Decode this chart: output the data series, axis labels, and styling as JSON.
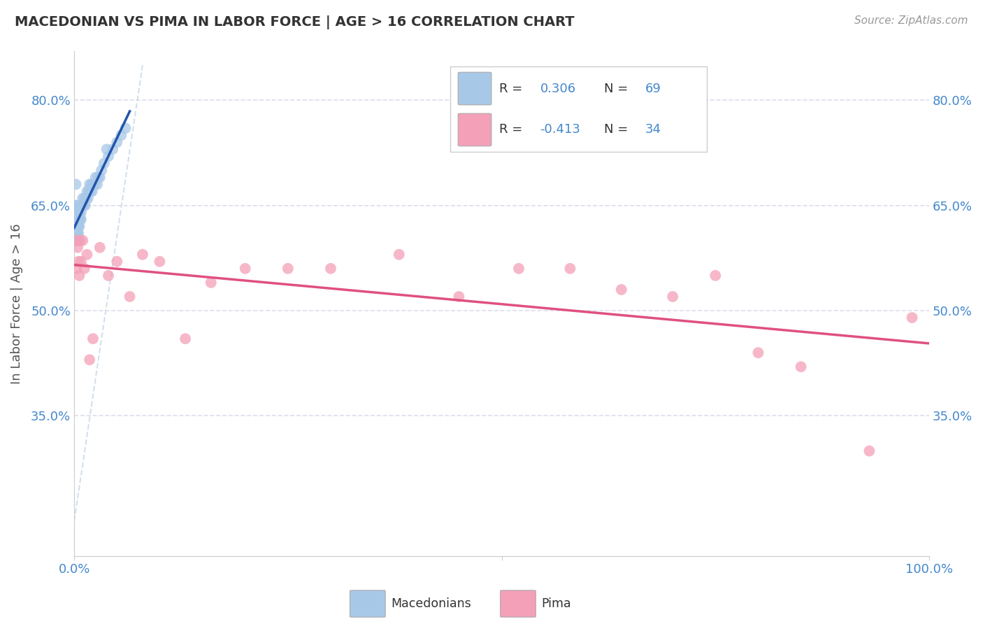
{
  "title": "MACEDONIAN VS PIMA IN LABOR FORCE | AGE > 16 CORRELATION CHART",
  "source": "Source: ZipAtlas.com",
  "ylabel": "In Labor Force | Age > 16",
  "xlim": [
    0.0,
    1.0
  ],
  "ylim": [
    0.15,
    0.87
  ],
  "yticks": [
    0.35,
    0.5,
    0.65,
    0.8
  ],
  "ytick_labels": [
    "35.0%",
    "50.0%",
    "65.0%",
    "80.0%"
  ],
  "xtick_left": "0.0%",
  "xtick_right": "100.0%",
  "macedonian_R": 0.306,
  "macedonian_N": 69,
  "pima_R": -0.413,
  "pima_N": 34,
  "blue_dot_color": "#a8c8e8",
  "pink_dot_color": "#f4a0b8",
  "trend_blue": "#2255aa",
  "trend_pink": "#e05080",
  "grid_color": "#ddddee",
  "diag_color": "#c8d8e8",
  "tick_color": "#4488cc",
  "legend_R_color": "#2255aa",
  "legend_N_color": "#e05080",
  "legend_label1": "Macedonians",
  "legend_label2": "Pima",
  "mac_x": [
    0.001,
    0.001,
    0.001,
    0.002,
    0.002,
    0.002,
    0.002,
    0.002,
    0.002,
    0.002,
    0.002,
    0.002,
    0.003,
    0.003,
    0.003,
    0.003,
    0.003,
    0.003,
    0.003,
    0.003,
    0.003,
    0.003,
    0.003,
    0.004,
    0.004,
    0.004,
    0.004,
    0.004,
    0.004,
    0.005,
    0.005,
    0.005,
    0.005,
    0.005,
    0.006,
    0.006,
    0.006,
    0.007,
    0.007,
    0.008,
    0.008,
    0.009,
    0.01,
    0.01,
    0.011,
    0.012,
    0.013,
    0.014,
    0.015,
    0.016,
    0.017,
    0.018,
    0.019,
    0.02,
    0.021,
    0.022,
    0.024,
    0.025,
    0.027,
    0.028,
    0.03,
    0.032,
    0.035,
    0.038,
    0.04,
    0.045,
    0.05,
    0.055,
    0.06
  ],
  "mac_y": [
    0.62,
    0.6,
    0.63,
    0.65,
    0.63,
    0.68,
    0.62,
    0.64,
    0.6,
    0.61,
    0.63,
    0.62,
    0.65,
    0.63,
    0.61,
    0.6,
    0.64,
    0.62,
    0.6,
    0.63,
    0.62,
    0.61,
    0.64,
    0.63,
    0.62,
    0.61,
    0.63,
    0.62,
    0.6,
    0.63,
    0.62,
    0.61,
    0.64,
    0.6,
    0.63,
    0.62,
    0.64,
    0.63,
    0.65,
    0.63,
    0.64,
    0.65,
    0.65,
    0.66,
    0.65,
    0.66,
    0.65,
    0.66,
    0.67,
    0.66,
    0.67,
    0.68,
    0.67,
    0.68,
    0.67,
    0.68,
    0.68,
    0.69,
    0.68,
    0.69,
    0.69,
    0.7,
    0.71,
    0.73,
    0.72,
    0.73,
    0.74,
    0.75,
    0.76
  ],
  "pima_x": [
    0.002,
    0.003,
    0.004,
    0.005,
    0.006,
    0.007,
    0.008,
    0.01,
    0.012,
    0.015,
    0.018,
    0.022,
    0.03,
    0.04,
    0.05,
    0.065,
    0.08,
    0.1,
    0.13,
    0.16,
    0.2,
    0.25,
    0.3,
    0.38,
    0.45,
    0.52,
    0.58,
    0.64,
    0.7,
    0.75,
    0.8,
    0.85,
    0.93,
    0.98
  ],
  "pima_y": [
    0.6,
    0.56,
    0.59,
    0.57,
    0.55,
    0.6,
    0.57,
    0.6,
    0.56,
    0.58,
    0.43,
    0.46,
    0.59,
    0.55,
    0.57,
    0.52,
    0.58,
    0.57,
    0.46,
    0.54,
    0.56,
    0.56,
    0.56,
    0.58,
    0.52,
    0.56,
    0.56,
    0.53,
    0.52,
    0.55,
    0.44,
    0.42,
    0.3,
    0.49
  ]
}
